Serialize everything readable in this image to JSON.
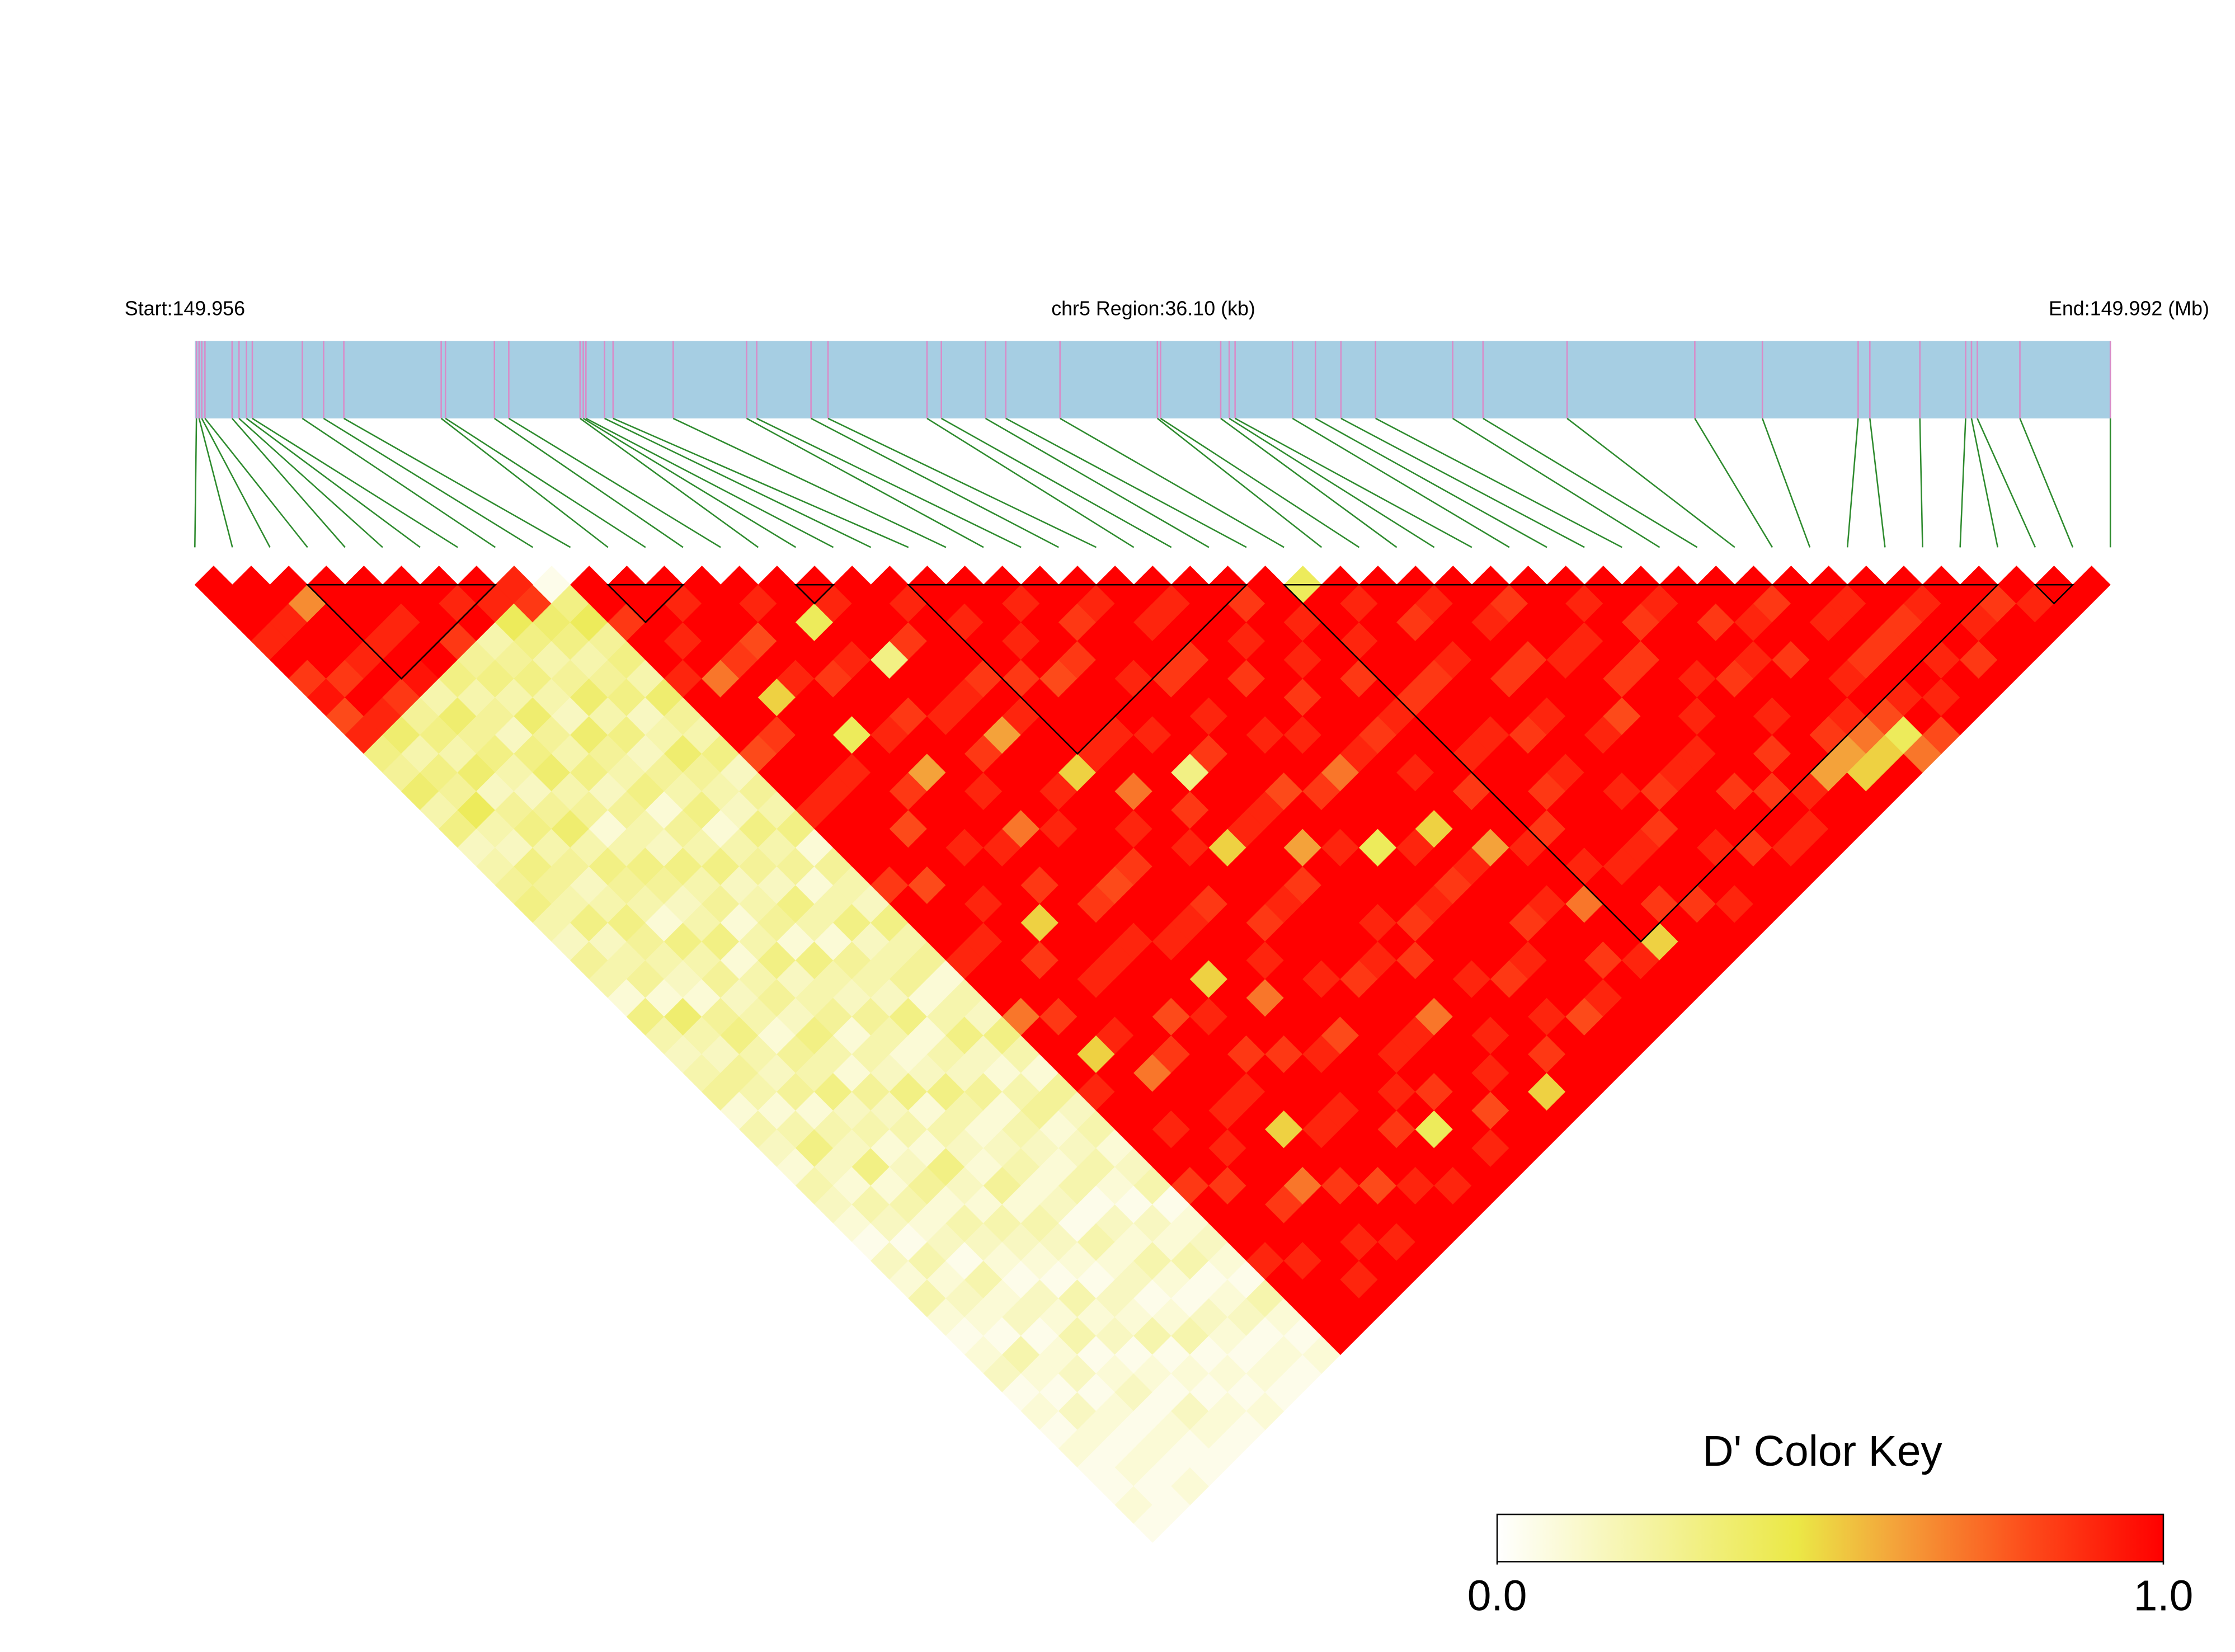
{
  "chart_data": {
    "type": "ld_heatmap",
    "title": "chr5 Region:36.10 (kb)",
    "start_label": "Start:149.956",
    "end_label": "End:149.992 (Mb)",
    "xlim": [
      149.956,
      149.992
    ],
    "snp_positions": [
      149.95603,
      149.95608,
      149.95613,
      149.95619,
      149.9567,
      149.95683,
      149.95697,
      149.95708,
      149.95802,
      149.95842,
      149.9588,
      149.96063,
      149.96071,
      149.96163,
      149.9619,
      149.96324,
      149.9633,
      149.96335,
      149.9637,
      149.96386,
      149.96499,
      149.96637,
      149.96656,
      149.96758,
      149.9679,
      149.96976,
      149.97003,
      149.97086,
      149.97124,
      149.97226,
      149.97409,
      149.97415,
      149.97528,
      149.97544,
      149.97555,
      149.97663,
      149.97706,
      149.97754,
      149.97819,
      149.97964,
      149.98021,
      149.98179,
      149.98419,
      149.98546,
      149.98726,
      149.98748,
      149.98842,
      149.98928,
      149.98939,
      149.9895,
      149.9903,
      149.992
    ],
    "values": [
      [
        1,
        1,
        1,
        0.9,
        1,
        0.85,
        0.95,
        0.8,
        0.9,
        0.3,
        0.25,
        0.35,
        0.2,
        0.3,
        0.15,
        0.2,
        0.25,
        0.3,
        0.2,
        0.15,
        0.25,
        0.2,
        0.1,
        0.3,
        0.2,
        0.15,
        0.2,
        0.25,
        0.1,
        0.2,
        0.15,
        0.1,
        0.2,
        0.15,
        0.1,
        0.05,
        0.15,
        0.1,
        0.2,
        0.1,
        0.05,
        0.1,
        0.15,
        0.05,
        0.1,
        0.05,
        0.1,
        0.05,
        0.05,
        0.1,
        0.05
      ],
      [
        1,
        1,
        0.9,
        1,
        1,
        0.85,
        1,
        0.9,
        0.35,
        0.2,
        0.3,
        0.25,
        0.4,
        0.2,
        0.15,
        0.3,
        0.25,
        0.2,
        0.3,
        0.15,
        0.2,
        0.25,
        0.1,
        0.35,
        0.2,
        0.15,
        0.25,
        0.2,
        0.1,
        0.2,
        0.3,
        0.15,
        0.1,
        0.2,
        0.15,
        0.05,
        0.2,
        0.1,
        0.15,
        0.1,
        0.05,
        0.2,
        0.1,
        0.05,
        0.15,
        0.1,
        0.05,
        0.1,
        0.05,
        0.05
      ],
      [
        1,
        0.65,
        1,
        1,
        0.9,
        1,
        0.85,
        0.25,
        0.3,
        0.2,
        0.35,
        0.15,
        0.25,
        0.3,
        0.2,
        0.25,
        0.15,
        0.2,
        0.3,
        0.25,
        0.2,
        0.15,
        0.1,
        0.25,
        0.3,
        0.2,
        0.15,
        0.25,
        0.1,
        0.2,
        0.15,
        0.3,
        0.1,
        0.2,
        0.1,
        0.15,
        0.05,
        0.2,
        0.1,
        0.15,
        0.05,
        0.1,
        0.15,
        0.05,
        0.1,
        0.05,
        0.1,
        0.05,
        0.1
      ],
      [
        1,
        1,
        1,
        0.9,
        1,
        0.95,
        0.2,
        0.35,
        0.25,
        0.3,
        0.2,
        0.15,
        0.25,
        0.35,
        0.2,
        0.3,
        0.25,
        0.2,
        0.1,
        0.3,
        0.2,
        0.25,
        0.15,
        0.2,
        0.1,
        0.25,
        0.2,
        0.3,
        0.15,
        0.2,
        0.1,
        0.15,
        0.25,
        0.1,
        0.2,
        0.15,
        0.1,
        0.05,
        0.15,
        0.1,
        0.2,
        0.05,
        0.1,
        0.15,
        0.05,
        0.1,
        0.05,
        0.05
      ],
      [
        1,
        1,
        0.9,
        1,
        1,
        0.3,
        0.2,
        0.25,
        0.15,
        0.3,
        0.35,
        0.2,
        0.25,
        0.1,
        0.2,
        0.3,
        0.25,
        0.15,
        0.2,
        0.3,
        0.1,
        0.2,
        0.25,
        0.15,
        0.3,
        0.2,
        0.1,
        0.25,
        0.15,
        0.2,
        0.1,
        0.3,
        0.15,
        0.1,
        0.2,
        0.15,
        0.1,
        0.05,
        0.2,
        0.1,
        0.15,
        0.05,
        0.1,
        0.05,
        0.15,
        0.1,
        0.05
      ],
      [
        1,
        1,
        1,
        0.85,
        0.25,
        0.3,
        0.2,
        0.35,
        0.25,
        0.2,
        0.3,
        0.15,
        0.25,
        0.2,
        0.15,
        0.3,
        0.2,
        0.25,
        0.1,
        0.2,
        0.3,
        0.15,
        0.2,
        0.25,
        0.1,
        0.2,
        0.15,
        0.3,
        0.1,
        0.2,
        0.15,
        0.1,
        0.25,
        0.1,
        0.2,
        0.15,
        0.1,
        0.05,
        0.15,
        0.1,
        0.2,
        0.05,
        0.1,
        0.05,
        0.1,
        0.05
      ],
      [
        1,
        0.9,
        1,
        0.2,
        0.25,
        0.3,
        0.2,
        0.15,
        0.35,
        0.25,
        0.2,
        0.3,
        0.1,
        0.25,
        0.2,
        0.3,
        0.15,
        0.2,
        0.25,
        0.1,
        0.3,
        0.2,
        0.15,
        0.25,
        0.2,
        0.1,
        0.15,
        0.3,
        0.2,
        0.1,
        0.15,
        0.2,
        0.1,
        0.15,
        0.05,
        0.2,
        0.1,
        0.15,
        0.05,
        0.1,
        0.2,
        0.05,
        0.1,
        0.05,
        0.1
      ],
      [
        1,
        0.9,
        0.4,
        0.3,
        0.2,
        0.25,
        0.35,
        0.2,
        0.3,
        0.15,
        0.25,
        0.2,
        0.3,
        0.1,
        0.2,
        0.25,
        0.15,
        0.3,
        0.2,
        0.1,
        0.25,
        0.2,
        0.15,
        0.3,
        0.1,
        0.2,
        0.15,
        0.25,
        0.1,
        0.2,
        0.15,
        0.1,
        0.2,
        0.05,
        0.15,
        0.1,
        0.2,
        0.1,
        0.05,
        0.15,
        0.1,
        0.05,
        0.1,
        0.05
      ],
      [
        0.9,
        0.85,
        0.35,
        0.3,
        0.2,
        0.25,
        0.3,
        0.15,
        0.2,
        0.35,
        0.25,
        0.2,
        0.15,
        0.3,
        0.2,
        0.25,
        0.1,
        0.2,
        0.3,
        0.15,
        0.2,
        0.25,
        0.1,
        0.2,
        0.3,
        0.15,
        0.1,
        0.2,
        0.25,
        0.1,
        0.15,
        0.2,
        0.1,
        0.05,
        0.15,
        0.1,
        0.2,
        0.05,
        0.1,
        0.15,
        0.05,
        0.1,
        0.05
      ],
      [
        0.05,
        0.3,
        0.4,
        0.25,
        0.3,
        0.2,
        0.35,
        0.25,
        0.2,
        0.3,
        0.15,
        0.25,
        0.2,
        0.3,
        0.1,
        0.25,
        0.2,
        0.15,
        0.3,
        0.2,
        0.25,
        0.1,
        0.2,
        0.15,
        0.3,
        0.2,
        0.1,
        0.25,
        0.15,
        0.2,
        0.1,
        0.15,
        0.2,
        0.05,
        0.1,
        0.15,
        0.1,
        0.05,
        0.2,
        0.1,
        0.05,
        0.1
      ],
      [
        1,
        1,
        0.85,
        1,
        1,
        0.9,
        1,
        1,
        1,
        0.8,
        1,
        1,
        0.9,
        1,
        1,
        1,
        0.85,
        1,
        1,
        1,
        0.9,
        1,
        1,
        0.7,
        1,
        1,
        1,
        0.9,
        1,
        1,
        1,
        1,
        0.85,
        1,
        1,
        1,
        0.9,
        1,
        1,
        1,
        1
      ],
      [
        1,
        1,
        1,
        0.9,
        1,
        0.7,
        1,
        1,
        0.85,
        1,
        1,
        0.9,
        1,
        1,
        1,
        1,
        0.8,
        1,
        1,
        0.9,
        1,
        1,
        1,
        0.85,
        1,
        0.5,
        1,
        1,
        1,
        0.9,
        1,
        1,
        0.85,
        1,
        1,
        1,
        0.9,
        1,
        1,
        1
      ],
      [
        1,
        0.9,
        1,
        1,
        0.85,
        1,
        0.5,
        1,
        1,
        1,
        0.9,
        1,
        1,
        0.8,
        1,
        1,
        1,
        0.9,
        1,
        1,
        0.85,
        1,
        1,
        1,
        0.9,
        1,
        0.7,
        1,
        1,
        1,
        0.9,
        1,
        1,
        0.85,
        1,
        1,
        1,
        0.9,
        1
      ],
      [
        1,
        1,
        1,
        0.8,
        1,
        0.9,
        1,
        1,
        0.4,
        1,
        1,
        0.85,
        1,
        1,
        0.9,
        1,
        1,
        1,
        0.5,
        1,
        1,
        0.9,
        1,
        1,
        1,
        0.85,
        1,
        1,
        0.9,
        1,
        1,
        1,
        0.7,
        1,
        1,
        0.9,
        1,
        1
      ],
      [
        1,
        0.9,
        1,
        1,
        1,
        0.85,
        1,
        1,
        0.9,
        1,
        0.6,
        1,
        1,
        1,
        0.9,
        1,
        0.85,
        1,
        1,
        1,
        0.9,
        1,
        1,
        0.8,
        1,
        1,
        1,
        0.9,
        1,
        0.5,
        1,
        1,
        0.85,
        1,
        1,
        0.9,
        1
      ],
      [
        1,
        1,
        0.4,
        1,
        0.9,
        1,
        1,
        0.85,
        1,
        1,
        1,
        0.9,
        1,
        0.7,
        1,
        1,
        1,
        0.85,
        1,
        0.9,
        1,
        1,
        1,
        0.9,
        1,
        0.85,
        1,
        1,
        1,
        0.9,
        1,
        1,
        0.8,
        1,
        1,
        1
      ],
      [
        1,
        0.9,
        1,
        1,
        0.3,
        1,
        1,
        0.9,
        1,
        0.85,
        1,
        1,
        1,
        0.9,
        1,
        1,
        0.8,
        1,
        1,
        0.9,
        1,
        0.5,
        1,
        1,
        1,
        0.85,
        1,
        1,
        0.9,
        1,
        1,
        1,
        0.9,
        1,
        1
      ],
      [
        1,
        1,
        1,
        0.85,
        1,
        1,
        0.9,
        1,
        0.6,
        1,
        1,
        0.9,
        1,
        1,
        1,
        0.85,
        1,
        1,
        0.9,
        1,
        1,
        1,
        0.7,
        1,
        1,
        0.9,
        1,
        1,
        1,
        0.85,
        1,
        1,
        0.9,
        1
      ],
      [
        1,
        0.9,
        1,
        1,
        1,
        0.85,
        1,
        0.9,
        1,
        1,
        0.5,
        1,
        1,
        0.9,
        1,
        1,
        1,
        0.85,
        1,
        1,
        0.9,
        1,
        1,
        1,
        0.8,
        1,
        1,
        0.9,
        1,
        0.4,
        1,
        1,
        1
      ],
      [
        1,
        1,
        0.9,
        1,
        1,
        0.85,
        1,
        1,
        1,
        0.9,
        1,
        0.7,
        1,
        1,
        0.9,
        1,
        1,
        1,
        0.85,
        1,
        1,
        0.9,
        1,
        1,
        1,
        0.9,
        1,
        0.85,
        1,
        1,
        0.9,
        1
      ],
      [
        1,
        1,
        1,
        0.9,
        1,
        0.8,
        1,
        1,
        0.9,
        1,
        1,
        1,
        0.85,
        1,
        0.5,
        1,
        1,
        0.9,
        1,
        1,
        1,
        0.85,
        1,
        1,
        0.9,
        1,
        1,
        1,
        0.8,
        1,
        1
      ],
      [
        1,
        0.9,
        1,
        1,
        0.85,
        1,
        1,
        1,
        0.9,
        1,
        0.3,
        1,
        1,
        0.9,
        1,
        1,
        0.85,
        1,
        1,
        1,
        0.9,
        1,
        1,
        0.7,
        1,
        1,
        0.9,
        1,
        1,
        1
      ],
      [
        1,
        1,
        0.85,
        1,
        1,
        0.9,
        1,
        1,
        1,
        0.85,
        1,
        1,
        0.9,
        1,
        0.6,
        1,
        1,
        1,
        0.9,
        1,
        0.85,
        1,
        1,
        1,
        0.9,
        1,
        1,
        0.5,
        1
      ],
      [
        1,
        0.9,
        1,
        1,
        1,
        0.85,
        1,
        0.9,
        1,
        1,
        1,
        0.8,
        1,
        1,
        0.9,
        1,
        1,
        1,
        0.85,
        1,
        1,
        0.9,
        1,
        1,
        1,
        0.85,
        1,
        1
      ],
      [
        1,
        1,
        0.9,
        1,
        0.85,
        1,
        1,
        1,
        0.9,
        1,
        1,
        0.85,
        1,
        1,
        0.4,
        1,
        1,
        0.9,
        1,
        1,
        1,
        0.85,
        1,
        0.9,
        1,
        1,
        1
      ],
      [
        1,
        0.9,
        1,
        1,
        1,
        0.85,
        1,
        1,
        0.9,
        1,
        0.7,
        1,
        1,
        1,
        0.9,
        1,
        0.85,
        1,
        1,
        1,
        0.9,
        1,
        1,
        0.8,
        1,
        1
      ],
      [
        1,
        1,
        1,
        0.9,
        1,
        1,
        0.85,
        1,
        1,
        0.9,
        1,
        1,
        1,
        0.5,
        1,
        0.9,
        1,
        1,
        0.85,
        1,
        1,
        1,
        0.9,
        1,
        1
      ],
      [
        1,
        0.85,
        1,
        1,
        0.9,
        1,
        1,
        1,
        0.85,
        1,
        0.9,
        1,
        1,
        1,
        0.6,
        1,
        1,
        0.9,
        1,
        1,
        0.85,
        1,
        1,
        1
      ],
      [
        1,
        1,
        0.9,
        1,
        1,
        0.85,
        1,
        0.9,
        1,
        1,
        1,
        0.85,
        1,
        1,
        0.9,
        1,
        1,
        0.7,
        1,
        1,
        0.9,
        1,
        1
      ],
      [
        0.4,
        1,
        1,
        0.9,
        1,
        1,
        0.85,
        1,
        1,
        0.9,
        1,
        1,
        1,
        0.85,
        1,
        0.9,
        1,
        1,
        1,
        0.5,
        1,
        1
      ],
      [
        1,
        0.9,
        1,
        1,
        1,
        0.85,
        1,
        1,
        0.9,
        1,
        1,
        0.85,
        1,
        1,
        1,
        0.9,
        1,
        0.85,
        1,
        1,
        1
      ],
      [
        1,
        1,
        0.85,
        1,
        0.9,
        1,
        1,
        1,
        0.85,
        1,
        0.9,
        1,
        1,
        1,
        0.9,
        1,
        1,
        0.85,
        1,
        1
      ],
      [
        1,
        0.9,
        1,
        1,
        1,
        0.85,
        1,
        0.9,
        1,
        1,
        1,
        0.9,
        1,
        0.85,
        1,
        1,
        1,
        0.9,
        1
      ],
      [
        1,
        1,
        0.9,
        1,
        0.85,
        1,
        1,
        1,
        0.9,
        1,
        1,
        0.85,
        1,
        1,
        0.9,
        1,
        1,
        1
      ],
      [
        1,
        0.85,
        1,
        1,
        0.9,
        1,
        1,
        0.8,
        1,
        1,
        0.9,
        1,
        1,
        1,
        0.85,
        1,
        1
      ],
      [
        1,
        1,
        1,
        0.9,
        1,
        0.85,
        1,
        1,
        1,
        0.9,
        1,
        0.85,
        1,
        1,
        0.9,
        1
      ],
      [
        1,
        0.9,
        1,
        1,
        0.85,
        1,
        1,
        0.9,
        1,
        1,
        1,
        0.85,
        1,
        0.9,
        1
      ],
      [
        1,
        1,
        0.85,
        1,
        1,
        0.9,
        1,
        1,
        1,
        0.85,
        1,
        0.9,
        1,
        1
      ],
      [
        1,
        0.9,
        1,
        1,
        1,
        0.85,
        1,
        0.9,
        1,
        1,
        0.6,
        1,
        1
      ],
      [
        1,
        1,
        0.85,
        1,
        0.9,
        1,
        1,
        1,
        0.85,
        0.6,
        0.5,
        1
      ],
      [
        1,
        1,
        0.9,
        1,
        0.85,
        1,
        1,
        0.9,
        0.7,
        0.5,
        1
      ],
      [
        1,
        0.85,
        1,
        1,
        1,
        0.9,
        1,
        0.8,
        0.4,
        0.7
      ],
      [
        1,
        1,
        0.9,
        1,
        0.85,
        1,
        0.9,
        1,
        0.8
      ],
      [
        1,
        0.9,
        1,
        0.85,
        1,
        1,
        0.9,
        1
      ],
      [
        1,
        1,
        0.85,
        1,
        0.9,
        1,
        1
      ],
      [
        1,
        0.9,
        1,
        1,
        0.85,
        1
      ],
      [
        1,
        1,
        0.9,
        1,
        1
      ],
      [
        1,
        0.85,
        1,
        1
      ],
      [
        1,
        0.9,
        1
      ],
      [
        1,
        1
      ],
      [
        1
      ]
    ],
    "blocks": [
      [
        3,
        8
      ],
      [
        11,
        13
      ],
      [
        16,
        17
      ],
      [
        19,
        28
      ],
      [
        29,
        48
      ],
      [
        49,
        50
      ]
    ],
    "track_color": "#a6cee3",
    "snp_line_color": "#d98bc8",
    "connector_color": "#2e8b2e",
    "block_color": "#000000",
    "colormap": [
      [
        0,
        "#ffffff"
      ],
      [
        0.45,
        "#ebe846"
      ],
      [
        0.6,
        "#f4a23a"
      ],
      [
        0.8,
        "#fd4a1a"
      ],
      [
        1,
        "#ff0000"
      ]
    ],
    "colorbar": {
      "title": "D' Color Key",
      "lim": [
        0,
        1
      ],
      "ticks": [
        {
          "value": 0,
          "label": "0.0"
        },
        {
          "value": 1,
          "label": "1.0"
        }
      ]
    }
  }
}
